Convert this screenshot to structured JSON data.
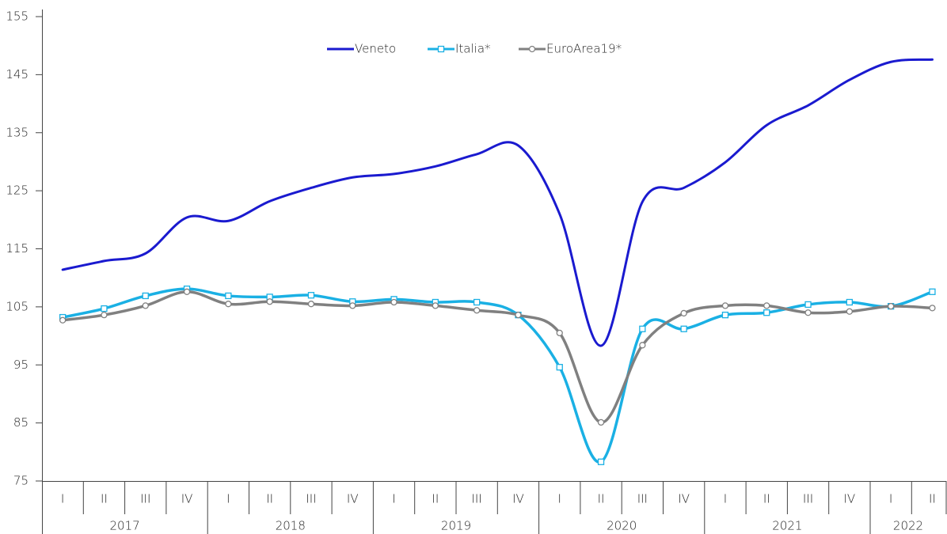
{
  "chart_data": {
    "type": "line",
    "categories": [
      "I",
      "II",
      "III",
      "IV",
      "I",
      "II",
      "III",
      "IV",
      "I",
      "II",
      "III",
      "IV",
      "I",
      "II",
      "III",
      "IV",
      "I",
      "II",
      "III",
      "IV",
      "I",
      "II"
    ],
    "years": [
      "2017",
      "2018",
      "2019",
      "2020",
      "2021",
      "2022"
    ],
    "series": [
      {
        "name": "Veneto",
        "color": "#1a1acf",
        "marker": "none",
        "values": [
          111.4,
          112.9,
          114.2,
          120.4,
          119.8,
          123.2,
          125.5,
          127.3,
          127.9,
          129.2,
          131.3,
          132.8,
          121.0,
          98.3,
          123.1,
          125.5,
          129.9,
          136.3,
          139.7,
          144.1,
          147.2,
          147.6
        ]
      },
      {
        "name": "Italia*",
        "color": "#1ab0e4",
        "marker": "square",
        "values": [
          103.2,
          104.7,
          106.9,
          108.1,
          106.9,
          106.7,
          107.0,
          105.9,
          106.3,
          105.8,
          105.8,
          103.6,
          94.6,
          78.3,
          101.2,
          101.2,
          103.6,
          104.0,
          105.4,
          105.8,
          105.1,
          107.6
        ]
      },
      {
        "name": "EuroArea19*",
        "color": "#808080",
        "marker": "circle",
        "values": [
          102.7,
          103.6,
          105.2,
          107.6,
          105.5,
          105.9,
          105.5,
          105.2,
          105.8,
          105.2,
          104.4,
          103.6,
          100.5,
          85.1,
          98.4,
          103.9,
          105.2,
          105.2,
          104.0,
          104.2,
          105.1,
          104.8
        ]
      }
    ],
    "ylim": [
      75,
      155
    ],
    "yticks": [
      75,
      85,
      95,
      105,
      115,
      125,
      135,
      145,
      155
    ],
    "legend": "top"
  }
}
